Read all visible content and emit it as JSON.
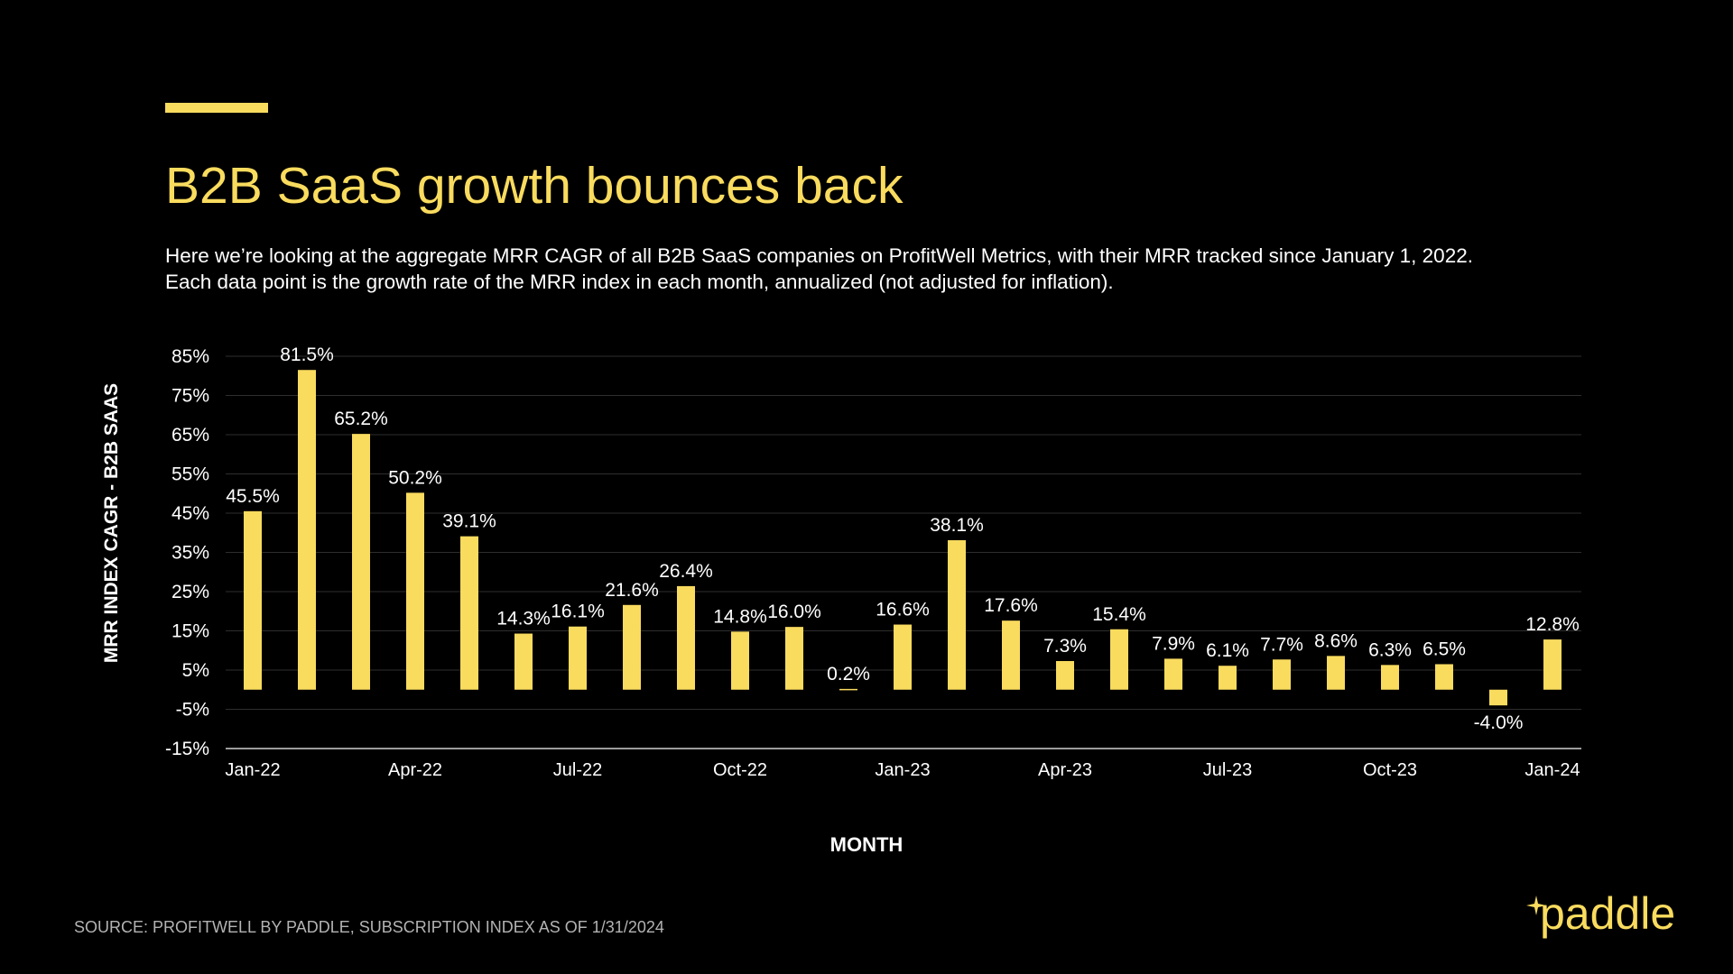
{
  "slide": {
    "title": "B2B SaaS growth bounces back",
    "subtitle_line1": "Here we’re looking at the aggregate MRR CAGR of all B2B SaaS companies on ProfitWell Metrics, with their MRR tracked since January 1, 2022.",
    "subtitle_line2": "Each data point is the growth rate of the MRR index in each month, annualized (not adjusted for inflation).",
    "source": "SOURCE: PROFITWELL BY PADDLE, SUBSCRIPTION INDEX AS OF 1/31/2024",
    "logo_text": "paddle",
    "colors": {
      "accent": "#F9DB5E",
      "background": "#000000",
      "text": "#FFFFFF",
      "grid": "#333333"
    },
    "icons": {
      "logo": "paddle-spark-icon"
    }
  },
  "chart_data": {
    "type": "bar",
    "title": "",
    "xlabel": "MONTH",
    "ylabel": "MRR INDEX CAGR - B2B SAAS",
    "ylim": [
      -15,
      85
    ],
    "yticks": [
      85,
      75,
      65,
      55,
      45,
      35,
      25,
      15,
      5,
      -5,
      -15
    ],
    "ytick_labels": [
      "85%",
      "75%",
      "65%",
      "55%",
      "45%",
      "35%",
      "25%",
      "15%",
      "5%",
      "-5%",
      "-15%"
    ],
    "categories": [
      "Jan-22",
      "Feb-22",
      "Mar-22",
      "Apr-22",
      "May-22",
      "Jun-22",
      "Jul-22",
      "Aug-22",
      "Sep-22",
      "Oct-22",
      "Nov-22",
      "Dec-22",
      "Jan-23",
      "Feb-23",
      "Mar-23",
      "Apr-23",
      "May-23",
      "Jun-23",
      "Jul-23",
      "Aug-23",
      "Sep-23",
      "Oct-23",
      "Nov-23",
      "Dec-23",
      "Jan-24"
    ],
    "xtick_labels": [
      "Jan-22",
      "",
      "",
      "Apr-22",
      "",
      "",
      "Jul-22",
      "",
      "",
      "Oct-22",
      "",
      "",
      "Jan-23",
      "",
      "",
      "Apr-23",
      "",
      "",
      "Jul-23",
      "",
      "",
      "Oct-23",
      "",
      "",
      "Jan-24"
    ],
    "values": [
      45.5,
      81.5,
      65.2,
      50.2,
      39.1,
      14.3,
      16.1,
      21.6,
      26.4,
      14.8,
      16.0,
      0.2,
      16.6,
      38.1,
      17.6,
      7.3,
      15.4,
      7.9,
      6.1,
      7.7,
      8.6,
      6.3,
      6.5,
      -4.0,
      12.8
    ],
    "data_labels": [
      "45.5%",
      "81.5%",
      "65.2%",
      "50.2%",
      "39.1%",
      "14.3%",
      "16.1%",
      "21.6%",
      "26.4%",
      "14.8%",
      "16.0%",
      "0.2%",
      "16.6%",
      "38.1%",
      "17.6%",
      "7.3%",
      "15.4%",
      "7.9%",
      "6.1%",
      "7.7%",
      "8.6%",
      "6.3%",
      "6.5%",
      "-4.0%",
      "12.8%"
    ],
    "grid": true,
    "legend": "none",
    "bar_color": "#F9DB5E"
  }
}
